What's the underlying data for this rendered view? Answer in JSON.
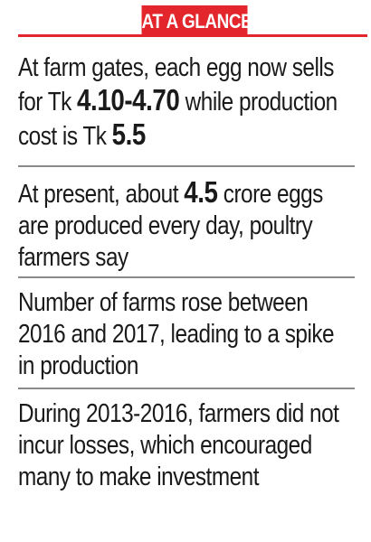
{
  "header": {
    "label": "AT A GLANCE"
  },
  "facts": [
    {
      "before": "At farm gates, each egg now sells for Tk ",
      "highlight_1": "4.10-4.70",
      "middle": " while production cost is Tk ",
      "highlight_2": "5.5"
    },
    {
      "before": "At present, about ",
      "highlight_1": "4.5",
      "after": " crore eggs are produced every day, poultry farmers say"
    },
    {
      "text": "Number of farms rose between 2016 and 2017, leading to a spike in production"
    },
    {
      "text": "During 2013-2016, farmers did not incur losses, which encouraged many to make investment"
    }
  ],
  "colors": {
    "accent": "#e3262b",
    "text": "#1a1a1a",
    "divider": "#8a8a8a"
  }
}
